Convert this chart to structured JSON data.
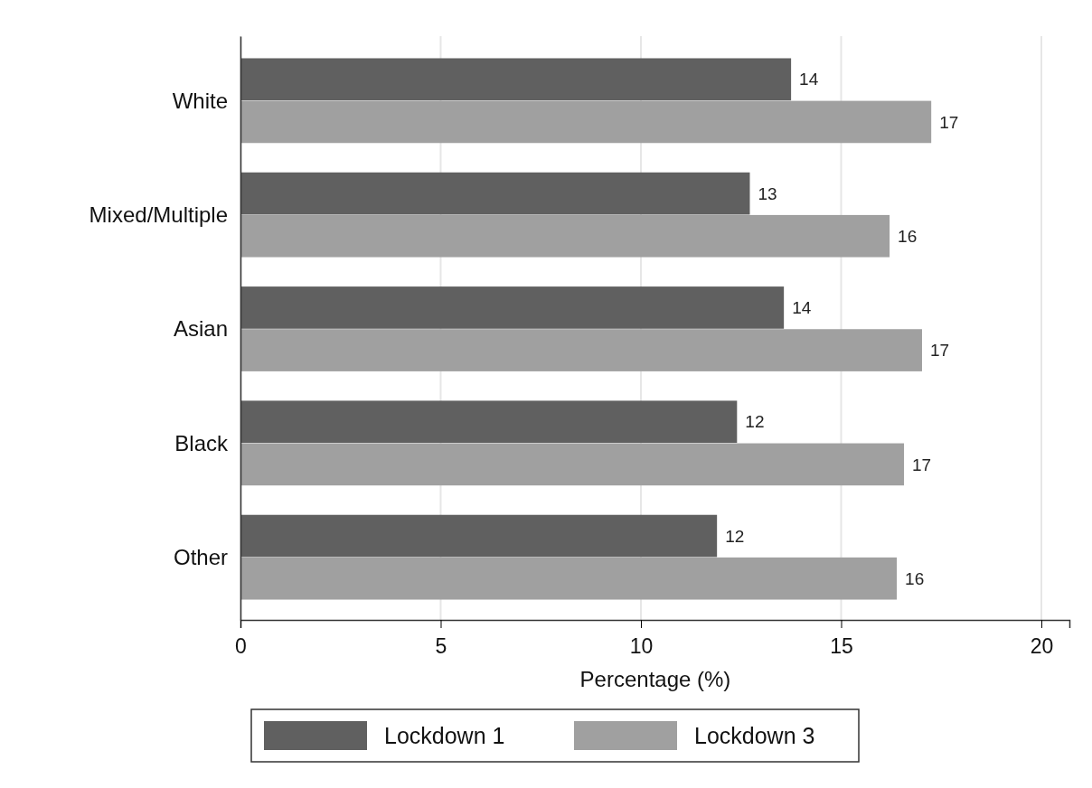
{
  "chart_data": {
    "type": "bar",
    "orientation": "horizontal",
    "xlabel": "Percentage (%)",
    "categories": [
      "White",
      "Mixed/Multiple",
      "Asian",
      "Black",
      "Other"
    ],
    "series": [
      {
        "name": "Lockdown 1",
        "color": "#606060",
        "values": [
          13.75,
          12.72,
          13.57,
          12.4,
          11.9
        ],
        "value_labels": [
          "14",
          "13",
          "14",
          "12",
          "12"
        ]
      },
      {
        "name": "Lockdown 3",
        "color": "#a0a0a0",
        "values": [
          17.25,
          16.21,
          17.02,
          16.57,
          16.39
        ],
        "value_labels": [
          "17",
          "16",
          "17",
          "17",
          "16"
        ]
      }
    ],
    "xlim": [
      0,
      20.7
    ],
    "xticks": [
      0,
      5,
      10,
      15,
      20
    ],
    "grid": "x",
    "legend": "bottom"
  }
}
